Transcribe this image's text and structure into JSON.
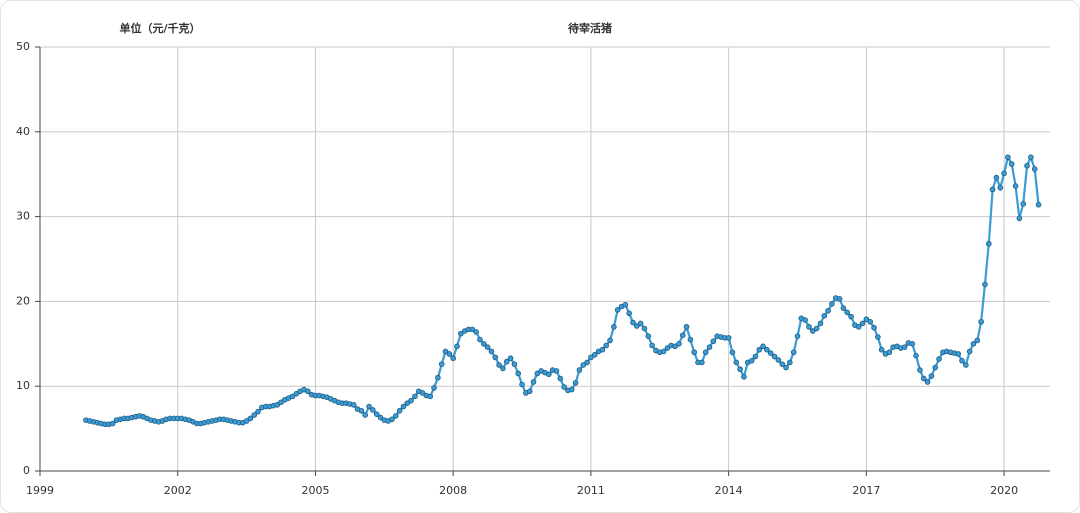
{
  "chart_data": {
    "type": "line",
    "title": "待宰活猪",
    "y_label": "单位（元/千克）",
    "color": "#3a9bd5",
    "xlim": [
      1999,
      2021
    ],
    "xticks": [
      1999,
      2002,
      2005,
      2008,
      2011,
      2014,
      2017,
      2020
    ],
    "ylim": [
      0,
      50
    ],
    "yticks": [
      0,
      10,
      20,
      30,
      40,
      50
    ],
    "grid": true,
    "x": [
      2000,
      2000.083,
      2000.167,
      2000.25,
      2000.333,
      2000.417,
      2000.5,
      2000.583,
      2000.667,
      2000.75,
      2000.833,
      2000.917,
      2001,
      2001.083,
      2001.167,
      2001.25,
      2001.333,
      2001.417,
      2001.5,
      2001.583,
      2001.667,
      2001.75,
      2001.833,
      2001.917,
      2002,
      2002.083,
      2002.167,
      2002.25,
      2002.333,
      2002.417,
      2002.5,
      2002.583,
      2002.667,
      2002.75,
      2002.833,
      2002.917,
      2003,
      2003.083,
      2003.167,
      2003.25,
      2003.333,
      2003.417,
      2003.5,
      2003.583,
      2003.667,
      2003.75,
      2003.833,
      2003.917,
      2004,
      2004.083,
      2004.167,
      2004.25,
      2004.333,
      2004.417,
      2004.5,
      2004.583,
      2004.667,
      2004.75,
      2004.833,
      2004.917,
      2005,
      2005.083,
      2005.167,
      2005.25,
      2005.333,
      2005.417,
      2005.5,
      2005.583,
      2005.667,
      2005.75,
      2005.833,
      2005.917,
      2006,
      2006.083,
      2006.167,
      2006.25,
      2006.333,
      2006.417,
      2006.5,
      2006.583,
      2006.667,
      2006.75,
      2006.833,
      2006.917,
      2007,
      2007.083,
      2007.167,
      2007.25,
      2007.333,
      2007.417,
      2007.5,
      2007.583,
      2007.667,
      2007.75,
      2007.833,
      2007.917,
      2008,
      2008.083,
      2008.167,
      2008.25,
      2008.333,
      2008.417,
      2008.5,
      2008.583,
      2008.667,
      2008.75,
      2008.833,
      2008.917,
      2009,
      2009.083,
      2009.167,
      2009.25,
      2009.333,
      2009.417,
      2009.5,
      2009.583,
      2009.667,
      2009.75,
      2009.833,
      2009.917,
      2010,
      2010.083,
      2010.167,
      2010.25,
      2010.333,
      2010.417,
      2010.5,
      2010.583,
      2010.667,
      2010.75,
      2010.833,
      2010.917,
      2011,
      2011.083,
      2011.167,
      2011.25,
      2011.333,
      2011.417,
      2011.5,
      2011.583,
      2011.667,
      2011.75,
      2011.833,
      2011.917,
      2012,
      2012.083,
      2012.167,
      2012.25,
      2012.333,
      2012.417,
      2012.5,
      2012.583,
      2012.667,
      2012.75,
      2012.833,
      2012.917,
      2013,
      2013.083,
      2013.167,
      2013.25,
      2013.333,
      2013.417,
      2013.5,
      2013.583,
      2013.667,
      2013.75,
      2013.833,
      2013.917,
      2014,
      2014.083,
      2014.167,
      2014.25,
      2014.333,
      2014.417,
      2014.5,
      2014.583,
      2014.667,
      2014.75,
      2014.833,
      2014.917,
      2015,
      2015.083,
      2015.167,
      2015.25,
      2015.333,
      2015.417,
      2015.5,
      2015.583,
      2015.667,
      2015.75,
      2015.833,
      2015.917,
      2016,
      2016.083,
      2016.167,
      2016.25,
      2016.333,
      2016.417,
      2016.5,
      2016.583,
      2016.667,
      2016.75,
      2016.833,
      2016.917,
      2017,
      2017.083,
      2017.167,
      2017.25,
      2017.333,
      2017.417,
      2017.5,
      2017.583,
      2017.667,
      2017.75,
      2017.833,
      2017.917,
      2018,
      2018.083,
      2018.167,
      2018.25,
      2018.333,
      2018.417,
      2018.5,
      2018.583,
      2018.667,
      2018.75,
      2018.833,
      2018.917,
      2019,
      2019.083,
      2019.167,
      2019.25,
      2019.333,
      2019.417,
      2019.5,
      2019.583,
      2019.667,
      2019.75,
      2019.833,
      2019.917,
      2020,
      2020.083,
      2020.167,
      2020.25,
      2020.333,
      2020.417,
      2020.5,
      2020.583,
      2020.667,
      2020.75
    ],
    "values": [
      6.0,
      5.9,
      5.8,
      5.7,
      5.6,
      5.5,
      5.5,
      5.6,
      6.0,
      6.1,
      6.2,
      6.2,
      6.3,
      6.4,
      6.5,
      6.4,
      6.2,
      6.0,
      5.9,
      5.8,
      5.9,
      6.1,
      6.2,
      6.2,
      6.2,
      6.2,
      6.1,
      6.0,
      5.8,
      5.6,
      5.6,
      5.7,
      5.8,
      5.9,
      6.0,
      6.1,
      6.1,
      6.0,
      5.9,
      5.8,
      5.7,
      5.7,
      5.9,
      6.2,
      6.6,
      7.0,
      7.5,
      7.6,
      7.6,
      7.7,
      7.8,
      8.1,
      8.4,
      8.6,
      8.8,
      9.1,
      9.4,
      9.6,
      9.4,
      9.0,
      8.9,
      8.9,
      8.8,
      8.7,
      8.5,
      8.3,
      8.1,
      8.0,
      8.0,
      7.9,
      7.8,
      7.3,
      7.1,
      6.6,
      7.6,
      7.2,
      6.7,
      6.3,
      6.0,
      5.9,
      6.1,
      6.5,
      7.1,
      7.6,
      8.0,
      8.3,
      8.8,
      9.4,
      9.2,
      8.9,
      8.8,
      9.8,
      11.0,
      12.6,
      14.1,
      13.8,
      13.3,
      14.7,
      16.2,
      16.5,
      16.7,
      16.7,
      16.4,
      15.5,
      15.0,
      14.6,
      14.1,
      13.4,
      12.5,
      12.1,
      12.9,
      13.3,
      12.6,
      11.5,
      10.2,
      9.2,
      9.4,
      10.5,
      11.5,
      11.8,
      11.6,
      11.4,
      11.9,
      11.8,
      10.9,
      9.9,
      9.5,
      9.6,
      10.4,
      11.9,
      12.5,
      12.8,
      13.4,
      13.7,
      14.1,
      14.3,
      14.8,
      15.4,
      17.0,
      19.0,
      19.4,
      19.6,
      18.6,
      17.5,
      17.1,
      17.4,
      16.8,
      15.9,
      14.8,
      14.2,
      14.0,
      14.1,
      14.5,
      14.8,
      14.7,
      15.0,
      16.0,
      17.0,
      15.5,
      14.0,
      12.8,
      12.8,
      14.0,
      14.6,
      15.3,
      15.9,
      15.8,
      15.7,
      15.7,
      14.0,
      12.8,
      12.0,
      11.1,
      12.8,
      13.0,
      13.5,
      14.3,
      14.7,
      14.3,
      13.9,
      13.5,
      13.1,
      12.6,
      12.2,
      12.8,
      14.0,
      15.9,
      18.0,
      17.8,
      17.0,
      16.5,
      16.8,
      17.4,
      18.3,
      18.9,
      19.7,
      20.4,
      20.3,
      19.2,
      18.7,
      18.2,
      17.2,
      17.0,
      17.4,
      17.9,
      17.6,
      16.9,
      15.8,
      14.3,
      13.8,
      14.0,
      14.6,
      14.7,
      14.5,
      14.6,
      15.1,
      15.0,
      13.6,
      11.9,
      10.9,
      10.5,
      11.2,
      12.2,
      13.2,
      14.0,
      14.1,
      14.0,
      13.9,
      13.8,
      13.0,
      12.5,
      14.1,
      15.0,
      15.4,
      17.6,
      22.0,
      26.8,
      33.2,
      34.6,
      33.4,
      35.1,
      37.0,
      36.2,
      33.6,
      29.8,
      31.5,
      36.0,
      37.0,
      35.6,
      31.4
    ]
  }
}
